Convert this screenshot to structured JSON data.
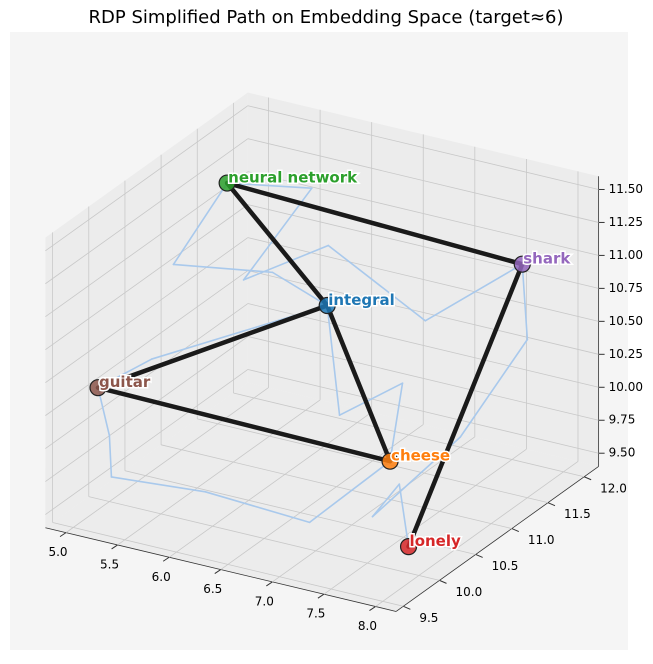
{
  "chart_data": {
    "type": "scatter3d",
    "title": "RDP Simplified Path on Embedding Space (target≈6)",
    "xlim": [
      4.8,
      8.2
    ],
    "ylim": [
      9.4,
      12.2
    ],
    "zlim": [
      9.4,
      11.6
    ],
    "xticks": [
      {
        "value": 5,
        "label": "5.0"
      },
      5.5,
      {
        "value": 6,
        "label": "6.0"
      },
      6.5,
      {
        "value": 7,
        "label": "7.0"
      },
      7.5,
      {
        "value": 8,
        "label": "8.0"
      }
    ],
    "yticks": [
      9.5,
      {
        "value": 10,
        "label": "10.0"
      },
      10.5,
      {
        "value": 11,
        "label": "11.0"
      },
      11.5,
      {
        "value": 12,
        "label": "12.0"
      }
    ],
    "zticks": [
      {
        "value": 9.5,
        "label": "9.50"
      },
      9.75,
      {
        "value": 10,
        "label": "10.00"
      },
      10.25,
      {
        "value": 10.5,
        "label": "10.50"
      },
      10.75,
      {
        "value": 11,
        "label": "11.00"
      },
      11.25,
      {
        "value": 11.5,
        "label": "11.50"
      }
    ],
    "grid": true,
    "original_path": {
      "color": "#a9c9ec",
      "x": [
        7.9,
        7.6,
        7.2,
        7.7,
        8.0,
        7.6,
        6.8,
        6.0,
        5.6,
        5.7,
        5.3,
        5.2,
        5.8,
        5.6,
        6.2,
        6.6,
        7.0,
        7.3,
        6.8,
        6.0,
        5.3,
        5.0,
        5.1,
        5.2,
        5.7,
        6.2
      ],
      "y": [
        10.0,
        10.3,
        10.5,
        11.0,
        11.5,
        12.0,
        11.8,
        11.6,
        11.0,
        11.8,
        11.2,
        10.6,
        11.0,
        11.4,
        11.3,
        10.9,
        11.2,
        10.6,
        10.2,
        9.9,
        9.6,
        10.0,
        9.7,
        10.3,
        10.8,
        11.3
      ],
      "z": [
        9.6,
        9.9,
        9.5,
        10.0,
        10.6,
        10.9,
        10.4,
        10.9,
        10.8,
        11.2,
        11.4,
        11.0,
        10.9,
        10.7,
        10.6,
        10.0,
        10.2,
        9.9,
        9.5,
        9.7,
        9.8,
        9.9,
        10.4,
        10.4,
        10.5,
        10.6
      ]
    },
    "simplified_path": {
      "color": "#1a1a1a",
      "x": [
        7.9,
        7.6,
        5.3,
        6.2,
        7.3,
        5.1,
        6.2
      ],
      "y": [
        10.0,
        12.0,
        11.2,
        11.3,
        10.6,
        9.7,
        11.3
      ],
      "z": [
        9.6,
        10.9,
        11.4,
        10.6,
        9.9,
        10.4,
        10.6
      ]
    },
    "points": {
      "labels": [
        "lonely",
        "shark",
        "neural network",
        "integral",
        "cheese",
        "guitar"
      ],
      "colors": [
        "#d62728",
        "#9467bd",
        "#2ca02c",
        "#1f77b4",
        "#ff7f0e",
        "#8c564b"
      ],
      "x": [
        7.9,
        7.6,
        5.3,
        6.2,
        7.3,
        5.1
      ],
      "y": [
        10.0,
        12.0,
        11.2,
        11.3,
        10.6,
        9.7
      ],
      "z": [
        9.6,
        10.9,
        11.4,
        10.6,
        9.9,
        10.4
      ]
    }
  }
}
